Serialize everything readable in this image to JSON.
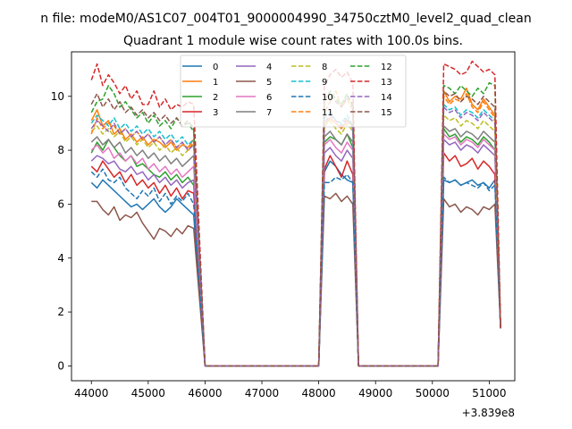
{
  "chart_data": {
    "type": "line",
    "suptitle": "n file: modeM0/AS1C07_004T01_9000004990_34750cztM0_level2_quad_clean",
    "title": "Quadrant 1 module wise count rates with 100.0s bins.",
    "xlabel": "",
    "ylabel": "",
    "x_offset_label": "+3.839e8",
    "xlim": [
      43650,
      51450
    ],
    "ylim": [
      -0.55,
      11.65
    ],
    "x_ticks": [
      44000,
      45000,
      46000,
      47000,
      48000,
      49000,
      50000,
      51000
    ],
    "x_tick_labels": [
      "44000",
      "45000",
      "46000",
      "47000",
      "48000",
      "49000",
      "50000",
      "51000"
    ],
    "y_ticks": [
      0,
      2,
      4,
      6,
      8,
      10
    ],
    "y_tick_labels": [
      "0",
      "2",
      "4",
      "6",
      "8",
      "10"
    ],
    "grid": false,
    "legend_position": "top-center",
    "legend_columns": 4,
    "segments": [
      {
        "x0": 44000,
        "dx": 100,
        "n": 19
      },
      {
        "x0": 48100,
        "dx": 100,
        "n": 6
      },
      {
        "x0": 50200,
        "dx": 100,
        "n": 10
      }
    ],
    "zero_runs": [
      [
        46000,
        48000
      ],
      [
        48700,
        50100
      ]
    ],
    "series": [
      {
        "name": "0",
        "color": "#1f77b4",
        "dash": "solid",
        "base": [
          6.8,
          6.6,
          6.9,
          6.7,
          6.5,
          6.3,
          6.1,
          5.9,
          6.0,
          5.8,
          6.0,
          6.2,
          5.9,
          5.7,
          5.9,
          6.2,
          6.0,
          5.8,
          5.6
        ],
        "peak": [
          7.2,
          7.6,
          7.4,
          7.1,
          6.9,
          6.8
        ],
        "tail": [
          6.9,
          6.8,
          6.9,
          6.7,
          6.8,
          6.9,
          6.7,
          6.8,
          6.6,
          6.9
        ]
      },
      {
        "name": "1",
        "color": "#ff7f0e",
        "dash": "solid",
        "base": [
          9.1,
          9.5,
          8.9,
          9.1,
          8.6,
          8.8,
          8.4,
          8.6,
          8.3,
          8.5,
          8.2,
          8.4,
          8.3,
          8.1,
          8.3,
          8.0,
          8.2,
          8.1,
          8.4
        ],
        "peak": [
          8.9,
          9.2,
          9.0,
          8.8,
          9.1,
          8.9
        ],
        "tail": [
          10.2,
          9.8,
          10.0,
          9.9,
          10.3,
          9.7,
          9.5,
          9.9,
          9.6,
          9.3
        ]
      },
      {
        "name": "2",
        "color": "#2ca02c",
        "dash": "solid",
        "base": [
          7.9,
          8.3,
          8.0,
          8.4,
          8.1,
          7.8,
          7.6,
          7.8,
          7.4,
          7.5,
          7.3,
          7.1,
          7.0,
          7.2,
          6.9,
          7.1,
          6.8,
          7.0,
          6.7
        ],
        "peak": [
          8.3,
          8.5,
          8.4,
          8.2,
          8.6,
          8.1
        ],
        "tail": [
          8.8,
          8.5,
          8.6,
          8.3,
          8.5,
          8.4,
          8.2,
          8.5,
          8.3,
          8.0
        ]
      },
      {
        "name": "3",
        "color": "#d62728",
        "dash": "solid",
        "base": [
          7.4,
          7.2,
          7.6,
          7.3,
          7.0,
          7.2,
          6.8,
          7.1,
          6.7,
          6.9,
          6.6,
          6.8,
          6.4,
          6.7,
          6.3,
          6.6,
          6.2,
          6.5,
          6.4
        ],
        "peak": [
          7.3,
          7.8,
          7.4,
          7.0,
          7.6,
          7.1
        ],
        "tail": [
          7.9,
          7.6,
          7.8,
          7.4,
          7.5,
          7.7,
          7.3,
          7.6,
          7.4,
          7.1
        ]
      },
      {
        "name": "4",
        "color": "#9467bd",
        "dash": "solid",
        "base": [
          7.6,
          7.8,
          7.7,
          7.5,
          7.6,
          7.3,
          7.2,
          7.4,
          7.1,
          7.2,
          6.9,
          7.1,
          6.8,
          7.0,
          6.7,
          6.9,
          6.6,
          6.8,
          6.9
        ],
        "peak": [
          7.9,
          8.1,
          7.8,
          7.6,
          8.0,
          7.7
        ],
        "tail": [
          8.4,
          8.2,
          8.3,
          8.0,
          8.2,
          8.1,
          7.9,
          8.2,
          8.0,
          7.8
        ]
      },
      {
        "name": "5",
        "color": "#8c564b",
        "dash": "solid",
        "base": [
          6.1,
          6.1,
          5.8,
          5.6,
          5.9,
          5.4,
          5.6,
          5.5,
          5.7,
          5.3,
          5.0,
          4.7,
          5.1,
          5.0,
          4.8,
          5.1,
          4.9,
          5.2,
          5.1
        ],
        "peak": [
          6.3,
          6.2,
          6.4,
          6.1,
          6.3,
          6.0
        ],
        "tail": [
          6.2,
          5.9,
          6.0,
          5.7,
          5.9,
          5.8,
          5.6,
          5.9,
          5.8,
          6.0
        ]
      },
      {
        "name": "6",
        "color": "#e377c2",
        "dash": "solid",
        "base": [
          8.0,
          8.2,
          7.9,
          8.1,
          7.7,
          7.9,
          7.6,
          7.8,
          7.5,
          7.7,
          7.3,
          7.5,
          7.2,
          7.4,
          7.1,
          7.3,
          7.0,
          7.2,
          7.4
        ],
        "peak": [
          8.2,
          8.4,
          8.1,
          7.9,
          8.3,
          8.0
        ],
        "tail": [
          8.6,
          8.4,
          8.5,
          8.2,
          8.4,
          8.3,
          8.1,
          8.4,
          8.2,
          8.0
        ]
      },
      {
        "name": "7",
        "color": "#7f7f7f",
        "dash": "solid",
        "base": [
          8.3,
          8.5,
          8.2,
          8.4,
          8.1,
          8.3,
          7.9,
          8.1,
          7.8,
          8.0,
          7.7,
          7.9,
          7.6,
          7.8,
          7.5,
          7.7,
          7.4,
          7.6,
          7.8
        ],
        "peak": [
          8.5,
          8.7,
          8.4,
          8.2,
          8.6,
          8.3
        ],
        "tail": [
          8.9,
          8.7,
          8.8,
          8.5,
          8.7,
          8.6,
          8.4,
          8.7,
          8.5,
          8.3
        ]
      },
      {
        "name": "8",
        "color": "#bcbd22",
        "dash": "dashed",
        "base": [
          8.7,
          8.9,
          8.6,
          8.8,
          8.5,
          8.7,
          8.3,
          8.5,
          8.2,
          8.4,
          8.1,
          8.3,
          8.0,
          8.2,
          7.9,
          8.1,
          7.8,
          8.0,
          8.2
        ],
        "peak": [
          8.9,
          9.1,
          8.8,
          8.6,
          9.0,
          8.7
        ],
        "tail": [
          9.3,
          9.1,
          9.2,
          8.9,
          9.1,
          9.0,
          8.8,
          9.1,
          8.9,
          8.7
        ]
      },
      {
        "name": "9",
        "color": "#17becf",
        "dash": "dashed",
        "base": [
          9.0,
          9.3,
          9.1,
          8.9,
          9.2,
          8.8,
          9.0,
          8.7,
          8.9,
          8.6,
          8.8,
          8.5,
          8.7,
          8.4,
          8.6,
          8.3,
          8.5,
          8.2,
          8.4
        ],
        "peak": [
          9.2,
          9.4,
          9.1,
          9.0,
          9.3,
          8.9
        ],
        "tail": [
          9.7,
          9.5,
          9.6,
          9.3,
          9.5,
          9.4,
          9.2,
          9.5,
          9.3,
          9.1
        ]
      },
      {
        "name": "10",
        "color": "#1f77b4",
        "dash": "dashed",
        "base": [
          7.2,
          7.0,
          7.3,
          6.9,
          6.8,
          7.0,
          6.6,
          6.4,
          6.2,
          6.5,
          6.3,
          6.6,
          6.1,
          6.4,
          6.0,
          6.3,
          6.1,
          6.4,
          6.0
        ],
        "peak": [
          6.8,
          6.8,
          7.0,
          6.9,
          7.1,
          6.8
        ],
        "tail": [
          7.0,
          6.8,
          6.9,
          6.7,
          6.8,
          6.7,
          6.6,
          6.8,
          6.5,
          6.7
        ]
      },
      {
        "name": "11",
        "color": "#ff7f0e",
        "dash": "dashed",
        "base": [
          8.6,
          9.2,
          8.8,
          9.0,
          8.9,
          8.6,
          8.8,
          8.5,
          8.7,
          8.4,
          8.6,
          8.3,
          8.5,
          8.2,
          8.4,
          8.1,
          8.3,
          8.0,
          8.3
        ],
        "peak": [
          9.4,
          9.8,
          10.2,
          9.6,
          9.9,
          9.5
        ],
        "tail": [
          10.0,
          9.7,
          9.9,
          9.8,
          10.1,
          9.6,
          9.4,
          9.8,
          9.5,
          9.2
        ]
      },
      {
        "name": "12",
        "color": "#2ca02c",
        "dash": "dashed",
        "base": [
          9.4,
          9.8,
          9.9,
          10.4,
          10.1,
          9.6,
          9.8,
          9.5,
          9.2,
          9.4,
          9.0,
          9.3,
          8.9,
          9.1,
          8.8,
          9.2,
          8.9,
          9.0,
          8.7
        ],
        "peak": [
          9.8,
          10.2,
          9.9,
          9.7,
          10.1,
          9.6
        ],
        "tail": [
          10.4,
          10.3,
          10.1,
          10.4,
          10.2,
          10.0,
          10.3,
          10.1,
          10.5,
          10.4
        ]
      },
      {
        "name": "13",
        "color": "#d62728",
        "dash": "dashed",
        "base": [
          10.6,
          11.2,
          10.4,
          10.8,
          10.5,
          10.1,
          10.4,
          9.9,
          10.2,
          9.7,
          9.7,
          10.2,
          9.6,
          9.9,
          9.5,
          9.7,
          9.6,
          9.8,
          9.7
        ],
        "peak": [
          10.4,
          10.8,
          11.0,
          10.7,
          10.9,
          10.5
        ],
        "tail": [
          11.2,
          11.1,
          11.0,
          10.8,
          10.9,
          11.3,
          11.1,
          10.9,
          11.0,
          10.8
        ]
      },
      {
        "name": "14",
        "color": "#9467bd",
        "dash": "dashed",
        "base": [
          8.8,
          9.1,
          8.9,
          8.7,
          9.0,
          8.6,
          8.8,
          8.5,
          8.7,
          8.4,
          8.6,
          8.3,
          8.5,
          8.2,
          8.4,
          8.1,
          8.3,
          8.0,
          8.2
        ],
        "peak": [
          9.0,
          9.3,
          9.1,
          8.9,
          9.2,
          8.8
        ],
        "tail": [
          9.6,
          9.4,
          9.5,
          9.2,
          9.4,
          9.3,
          9.1,
          9.4,
          9.2,
          9.0
        ]
      },
      {
        "name": "15",
        "color": "#8c564b",
        "dash": "dashed",
        "base": [
          9.7,
          10.1,
          9.6,
          9.9,
          9.5,
          9.8,
          9.4,
          9.6,
          9.3,
          9.5,
          9.2,
          9.4,
          9.1,
          9.3,
          9.0,
          9.2,
          8.9,
          9.1,
          8.8
        ],
        "peak": [
          9.9,
          10.1,
          9.8,
          9.6,
          10.0,
          9.7
        ],
        "tail": [
          10.2,
          10.0,
          10.1,
          9.8,
          10.0,
          9.9,
          9.7,
          10.0,
          9.8,
          9.6
        ]
      }
    ]
  }
}
